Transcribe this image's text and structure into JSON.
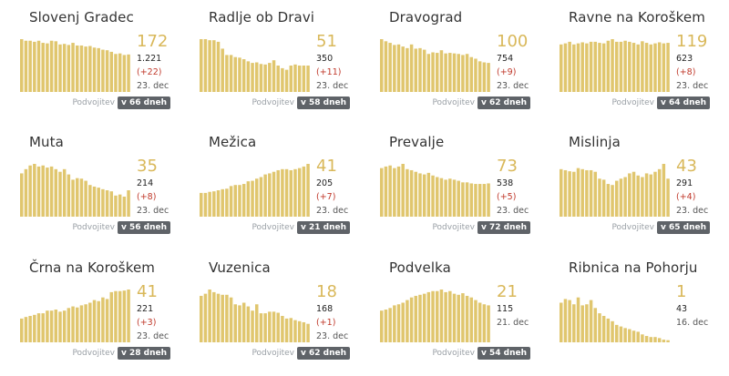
{
  "common": {
    "doubling_label": "Podvojitev",
    "bar_color": "#e0c66e",
    "number_color": "#d9b85a",
    "change_color": "#c0392b",
    "badge_color": "#5f6368"
  },
  "chart_data": [
    {
      "type": "bar",
      "title": "Slovenj Gradec",
      "headline": "172",
      "total": "1.221",
      "change": "(+22)",
      "date": "23. dec",
      "doubling": "v 66 dneh",
      "values": [
        1.0,
        0.97,
        0.97,
        0.95,
        0.97,
        0.93,
        0.92,
        0.97,
        0.96,
        0.9,
        0.91,
        0.89,
        0.93,
        0.88,
        0.88,
        0.86,
        0.87,
        0.84,
        0.83,
        0.8,
        0.79,
        0.76,
        0.72,
        0.73,
        0.7,
        0.71
      ]
    },
    {
      "type": "bar",
      "title": "Radlje ob Dravi",
      "headline": "51",
      "total": "350",
      "change": "(+11)",
      "date": "23. dec",
      "doubling": "v 58 dneh",
      "values": [
        1.0,
        1.0,
        0.98,
        0.98,
        0.95,
        0.82,
        0.7,
        0.7,
        0.66,
        0.65,
        0.62,
        0.58,
        0.55,
        0.56,
        0.53,
        0.52,
        0.55,
        0.6,
        0.5,
        0.45,
        0.42,
        0.5,
        0.52,
        0.5,
        0.5,
        0.5
      ]
    },
    {
      "type": "bar",
      "title": "Dravograd",
      "headline": "100",
      "total": "754",
      "change": "(+9)",
      "date": "23. dec",
      "doubling": "v 62 dneh",
      "values": [
        1.0,
        0.96,
        0.93,
        0.89,
        0.9,
        0.86,
        0.83,
        0.9,
        0.82,
        0.83,
        0.8,
        0.72,
        0.75,
        0.74,
        0.79,
        0.73,
        0.74,
        0.73,
        0.72,
        0.7,
        0.72,
        0.66,
        0.63,
        0.58,
        0.56,
        0.55
      ]
    },
    {
      "type": "bar",
      "title": "Ravne na Koroškem",
      "headline": "119",
      "total": "623",
      "change": "(+8)",
      "date": "23. dec",
      "doubling": "v 64 dneh",
      "values": [
        0.9,
        0.92,
        0.95,
        0.9,
        0.92,
        0.94,
        0.92,
        0.95,
        0.95,
        0.93,
        0.92,
        0.97,
        1.0,
        0.95,
        0.95,
        0.97,
        0.95,
        0.93,
        0.9,
        0.96,
        0.93,
        0.9,
        0.92,
        0.94,
        0.92,
        0.93
      ]
    },
    {
      "type": "bar",
      "title": "Muta",
      "headline": "35",
      "total": "214",
      "change": "(+8)",
      "date": "23. dec",
      "doubling": "v 56 dneh",
      "values": [
        0.82,
        0.9,
        0.97,
        1.0,
        0.95,
        0.97,
        0.93,
        0.95,
        0.9,
        0.85,
        0.9,
        0.8,
        0.7,
        0.73,
        0.72,
        0.68,
        0.6,
        0.57,
        0.55,
        0.52,
        0.5,
        0.48,
        0.4,
        0.42,
        0.38,
        0.5
      ]
    },
    {
      "type": "bar",
      "title": "Mežica",
      "headline": "41",
      "total": "205",
      "change": "(+7)",
      "date": "23. dec",
      "doubling": "v 21 dneh",
      "values": [
        0.45,
        0.45,
        0.47,
        0.48,
        0.5,
        0.52,
        0.53,
        0.58,
        0.6,
        0.6,
        0.62,
        0.67,
        0.68,
        0.72,
        0.75,
        0.8,
        0.82,
        0.85,
        0.88,
        0.9,
        0.9,
        0.88,
        0.9,
        0.92,
        0.95,
        1.0
      ]
    },
    {
      "type": "bar",
      "title": "Prevalje",
      "headline": "73",
      "total": "538",
      "change": "(+5)",
      "date": "23. dec",
      "doubling": "v 72 dneh",
      "values": [
        0.92,
        0.95,
        0.97,
        0.92,
        0.95,
        1.0,
        0.9,
        0.88,
        0.85,
        0.82,
        0.8,
        0.83,
        0.78,
        0.75,
        0.73,
        0.7,
        0.72,
        0.7,
        0.68,
        0.65,
        0.65,
        0.63,
        0.62,
        0.62,
        0.62,
        0.63
      ]
    },
    {
      "type": "bar",
      "title": "Mislinja",
      "headline": "43",
      "total": "291",
      "change": "(+4)",
      "date": "23. dec",
      "doubling": "v 65 dneh",
      "values": [
        0.9,
        0.88,
        0.86,
        0.85,
        0.92,
        0.9,
        0.88,
        0.88,
        0.85,
        0.72,
        0.7,
        0.62,
        0.6,
        0.68,
        0.72,
        0.75,
        0.82,
        0.85,
        0.78,
        0.75,
        0.82,
        0.8,
        0.85,
        0.9,
        1.0,
        0.72
      ]
    },
    {
      "type": "bar",
      "title": "Črna na Koroškem",
      "headline": "41",
      "total": "221",
      "change": "(+3)",
      "date": "23. dec",
      "doubling": "v 28 dneh",
      "values": [
        0.45,
        0.48,
        0.5,
        0.52,
        0.55,
        0.55,
        0.6,
        0.6,
        0.62,
        0.58,
        0.6,
        0.65,
        0.68,
        0.66,
        0.7,
        0.72,
        0.75,
        0.8,
        0.78,
        0.85,
        0.82,
        0.95,
        0.97,
        0.97,
        0.98,
        1.0
      ]
    },
    {
      "type": "bar",
      "title": "Vuzenica",
      "headline": "18",
      "total": "168",
      "change": "(+1)",
      "date": "23. dec",
      "doubling": "v 62 dneh",
      "values": [
        0.88,
        0.92,
        1.0,
        0.95,
        0.92,
        0.9,
        0.9,
        0.85,
        0.72,
        0.7,
        0.75,
        0.68,
        0.6,
        0.72,
        0.55,
        0.55,
        0.58,
        0.58,
        0.56,
        0.5,
        0.45,
        0.46,
        0.42,
        0.4,
        0.38,
        0.35
      ]
    },
    {
      "type": "bar",
      "title": "Podvelka",
      "headline": "21",
      "total": "115",
      "change": "",
      "date": "21. dec",
      "doubling": "v 54 dneh",
      "values": [
        0.6,
        0.62,
        0.65,
        0.7,
        0.72,
        0.75,
        0.8,
        0.85,
        0.88,
        0.9,
        0.92,
        0.95,
        0.97,
        0.97,
        1.0,
        0.95,
        0.97,
        0.92,
        0.9,
        0.93,
        0.88,
        0.85,
        0.8,
        0.75,
        0.72,
        0.7
      ]
    },
    {
      "type": "bar",
      "title": "Ribnica na Pohorju",
      "headline": "1",
      "total": "43",
      "change": "",
      "date": "16. dec",
      "doubling": "",
      "values": [
        0.75,
        0.82,
        0.8,
        0.72,
        0.85,
        0.7,
        0.72,
        0.8,
        0.65,
        0.55,
        0.5,
        0.45,
        0.4,
        0.33,
        0.3,
        0.27,
        0.25,
        0.22,
        0.2,
        0.15,
        0.12,
        0.1,
        0.1,
        0.08,
        0.05,
        0.04
      ]
    }
  ]
}
